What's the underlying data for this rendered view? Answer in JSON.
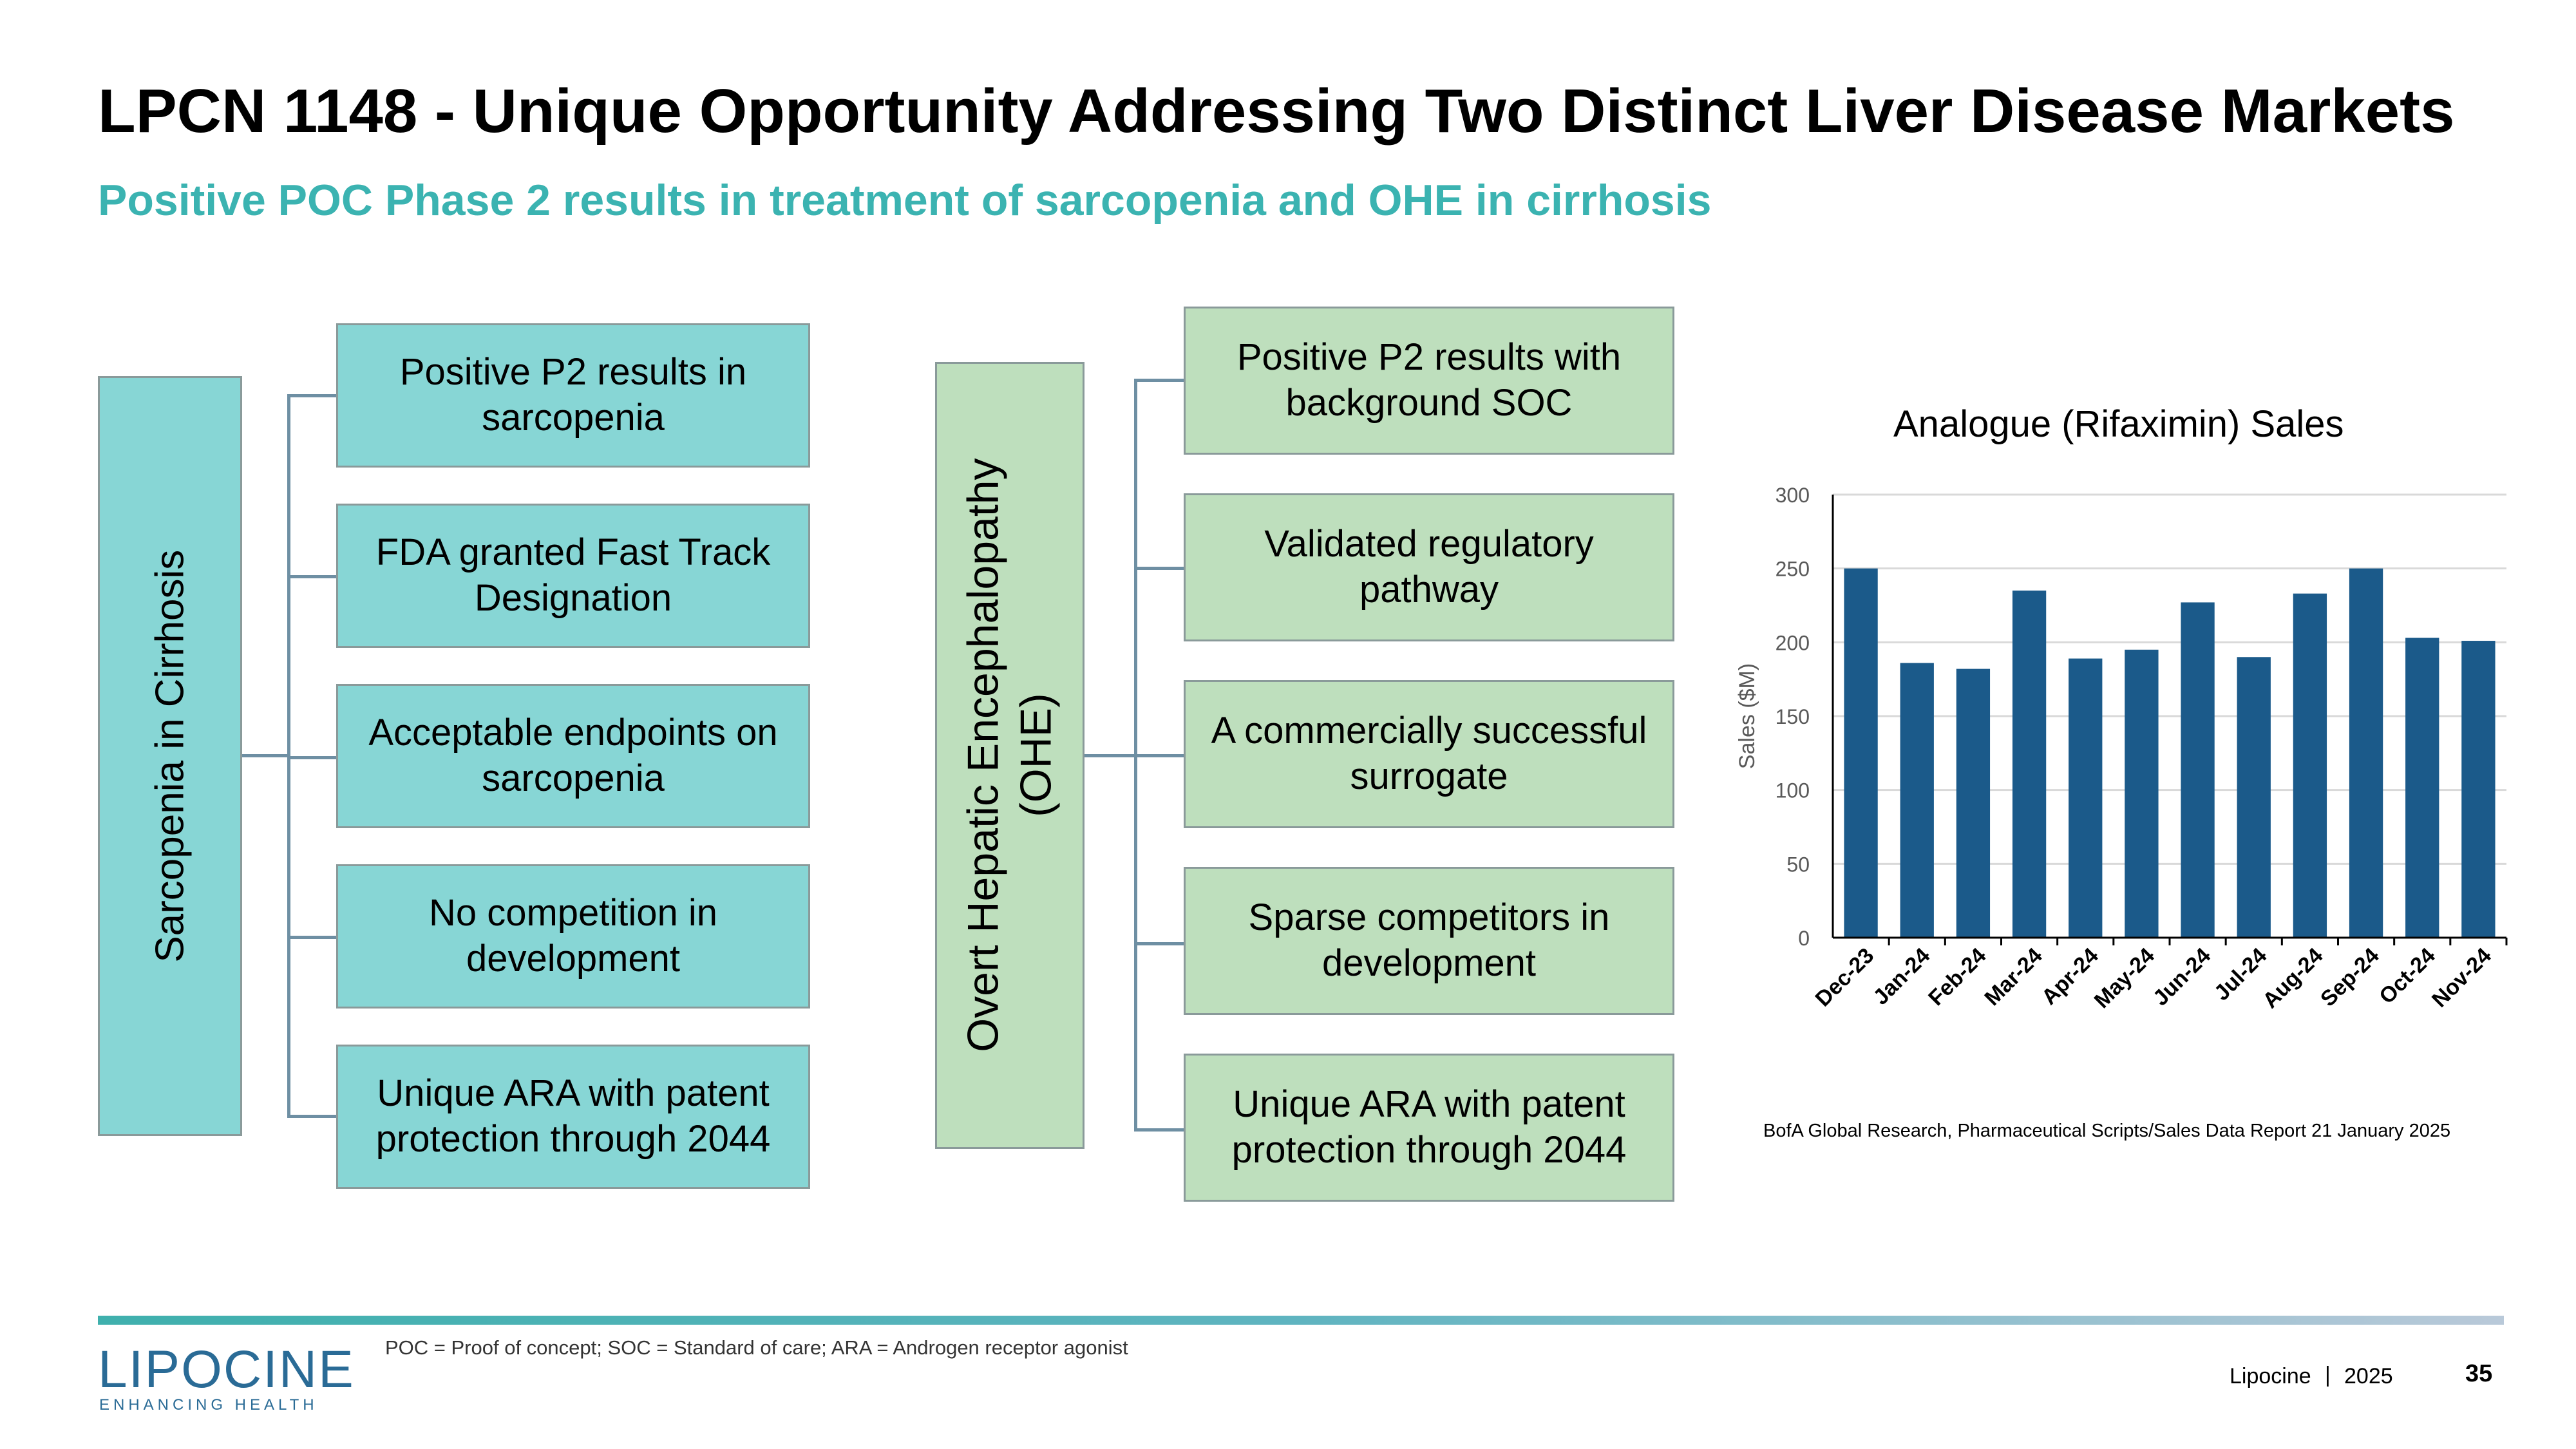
{
  "slide": {
    "title": "LPCN 1148 - Unique Opportunity Addressing Two Distinct Liver Disease Markets",
    "subtitle": "Positive POC Phase 2 results in treatment of sarcopenia and OHE in cirrhosis"
  },
  "sarcopenia": {
    "root": "Sarcopenia in Cirrhosis",
    "items": [
      "Positive P2 results in sarcopenia",
      "FDA granted Fast Track Designation",
      "Acceptable endpoints on sarcopenia",
      "No competition in development",
      "Unique ARA with patent protection through 2044"
    ],
    "color": "#87d6d5"
  },
  "ohe": {
    "root_line1": "Overt Hepatic Encephalopathy",
    "root_line2": "(OHE)",
    "items": [
      "Positive P2 results with background SOC",
      "Validated regulatory pathway",
      "A commercially successful surrogate",
      "Sparse competitors in development",
      "Unique ARA with patent protection through 2044"
    ],
    "color": "#bedfbd"
  },
  "chart_data": {
    "type": "bar",
    "title": "Analogue (Rifaximin) Sales",
    "ylabel": "Sales ($M)",
    "xlabel": "",
    "categories": [
      "Dec-23",
      "Jan-24",
      "Feb-24",
      "Mar-24",
      "Apr-24",
      "May-24",
      "Jun-24",
      "Jul-24",
      "Aug-24",
      "Sep-24",
      "Oct-24",
      "Nov-24"
    ],
    "values": [
      250,
      186,
      182,
      235,
      189,
      195,
      227,
      190,
      233,
      250,
      203,
      201
    ],
    "ylim": [
      0,
      300
    ],
    "yticks": [
      "0",
      "50",
      "100",
      "150",
      "200",
      "250",
      "300"
    ],
    "grid": true,
    "bar_color": "#1b5a8a"
  },
  "source_note": "BofA Global Research, Pharmaceutical Scripts/Sales Data Report  21 January 2025",
  "footer": {
    "footnote": "POC = Proof of concept; SOC = Standard of care; ARA = Androgen receptor agonist",
    "logo_text": "LIPOCINE",
    "logo_tagline": "ENHANCING HEALTH",
    "company": "Lipocine",
    "separator": "|",
    "year": "2025",
    "page_number": "35"
  }
}
